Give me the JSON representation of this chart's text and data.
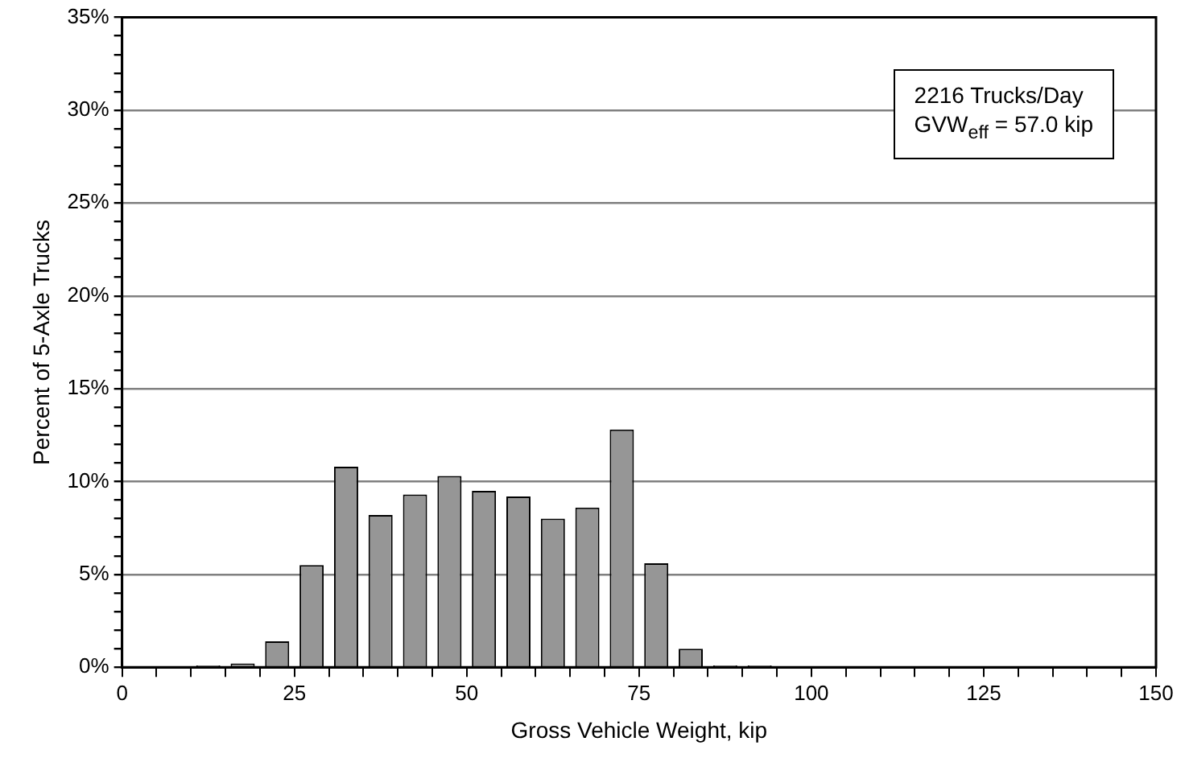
{
  "chart_data": {
    "type": "histogram",
    "xlabel": "Gross Vehicle Weight, kip",
    "ylabel": "Percent of 5-Axle Trucks",
    "bins": [
      0,
      5,
      10,
      15,
      20,
      25,
      30,
      35,
      40,
      45,
      50,
      55,
      60,
      65,
      70,
      75,
      80,
      85,
      90,
      95,
      100,
      105,
      110,
      115,
      120,
      125,
      130,
      135,
      140,
      145,
      150
    ],
    "values": [
      0,
      0,
      0.1,
      0.2,
      1.4,
      5.5,
      10.8,
      8.2,
      9.3,
      10.3,
      9.5,
      9.2,
      8.0,
      8.6,
      12.8,
      5.6,
      1.0,
      0.1,
      0.1,
      0,
      0,
      0,
      0,
      0,
      0,
      0,
      0,
      0,
      0,
      0
    ],
    "color": "#969696",
    "xlim": [
      0,
      150
    ],
    "xticks": [
      0,
      {
        "value": 5,
        "label": null
      },
      {
        "value": 10,
        "label": null
      },
      {
        "value": 15,
        "label": null
      },
      {
        "value": 20,
        "label": null
      },
      25,
      {
        "value": 30,
        "label": null
      },
      {
        "value": 35,
        "label": null
      },
      {
        "value": 40,
        "label": null
      },
      {
        "value": 45,
        "label": null
      },
      50,
      {
        "value": 55,
        "label": null
      },
      {
        "value": 60,
        "label": null
      },
      {
        "value": 65,
        "label": null
      },
      {
        "value": 70,
        "label": null
      },
      75,
      {
        "value": 80,
        "label": null
      },
      {
        "value": 85,
        "label": null
      },
      {
        "value": 90,
        "label": null
      },
      {
        "value": 95,
        "label": null
      },
      100,
      {
        "value": 105,
        "label": null
      },
      {
        "value": 110,
        "label": null
      },
      {
        "value": 115,
        "label": null
      },
      {
        "value": 120,
        "label": null
      },
      125,
      {
        "value": 130,
        "label": null
      },
      {
        "value": 135,
        "label": null
      },
      {
        "value": 140,
        "label": null
      },
      {
        "value": 145,
        "label": null
      },
      150
    ],
    "ylim": [
      0,
      35
    ],
    "yticks": [
      {
        "value": 0,
        "label": "0%"
      },
      {
        "value": 1,
        "label": null
      },
      {
        "value": 2,
        "label": null
      },
      {
        "value": 3,
        "label": null
      },
      {
        "value": 4,
        "label": null
      },
      {
        "value": 5,
        "label": "5%"
      },
      {
        "value": 6,
        "label": null
      },
      {
        "value": 7,
        "label": null
      },
      {
        "value": 8,
        "label": null
      },
      {
        "value": 9,
        "label": null
      },
      {
        "value": 10,
        "label": "10%"
      },
      {
        "value": 11,
        "label": null
      },
      {
        "value": 12,
        "label": null
      },
      {
        "value": 13,
        "label": null
      },
      {
        "value": 14,
        "label": null
      },
      {
        "value": 15,
        "label": "15%"
      },
      {
        "value": 16,
        "label": null
      },
      {
        "value": 17,
        "label": null
      },
      {
        "value": 18,
        "label": null
      },
      {
        "value": 19,
        "label": null
      },
      {
        "value": 20,
        "label": "20%"
      },
      {
        "value": 21,
        "label": null
      },
      {
        "value": 22,
        "label": null
      },
      {
        "value": 23,
        "label": null
      },
      {
        "value": 24,
        "label": null
      },
      {
        "value": 25,
        "label": "25%"
      },
      {
        "value": 26,
        "label": null
      },
      {
        "value": 27,
        "label": null
      },
      {
        "value": 28,
        "label": null
      },
      {
        "value": 29,
        "label": null
      },
      {
        "value": 30,
        "label": "30%"
      },
      {
        "value": 31,
        "label": null
      },
      {
        "value": 32,
        "label": null
      },
      {
        "value": 33,
        "label": null
      },
      {
        "value": 34,
        "label": null
      },
      {
        "value": 35,
        "label": "35%"
      }
    ],
    "grid": "y",
    "legend": false,
    "annotations": [
      "2216 Trucks/Day",
      "GVW$_{eff}$ = 57.0 kip"
    ]
  }
}
